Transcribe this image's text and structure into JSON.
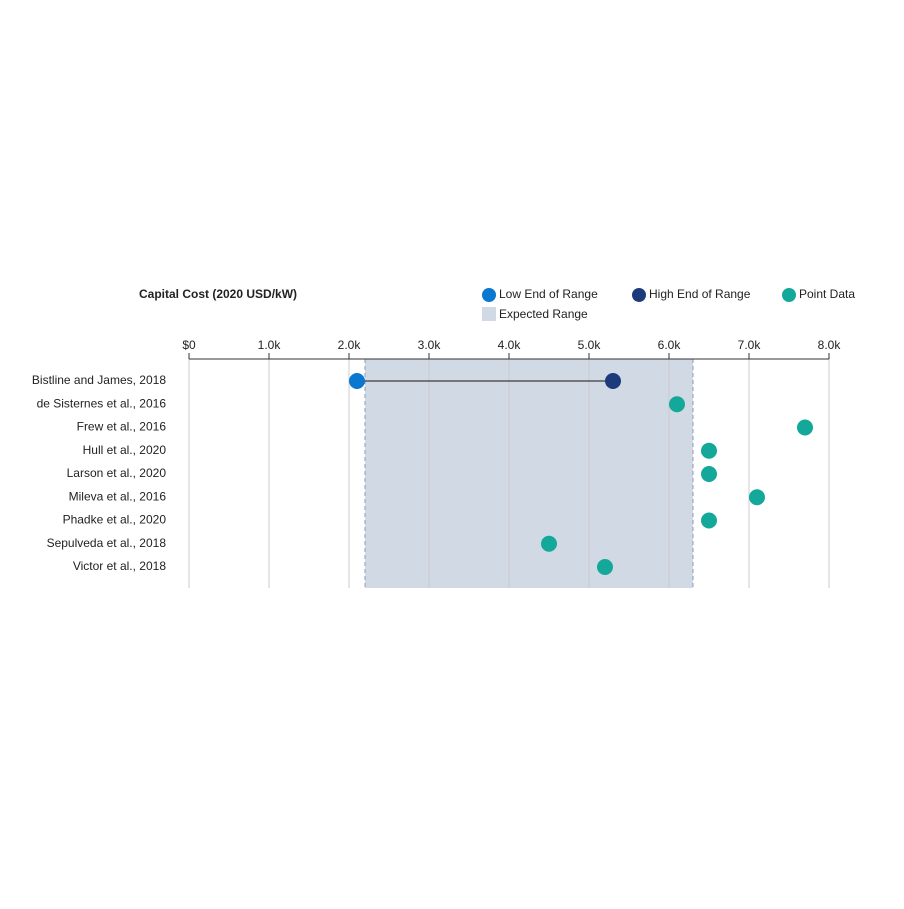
{
  "chart_data": {
    "type": "dot_range",
    "title": "Capital Cost (2020 USD/kW)",
    "categories": [
      "Bistline and James, 2018",
      "de Sisternes et al., 2016",
      "Frew et al., 2016",
      "Hull et al., 2020",
      "Larson et al., 2020",
      "Mileva et al., 2016",
      "Phadke et al., 2020",
      "Sepulveda et al., 2018",
      "Victor et al., 2018"
    ],
    "series": [
      {
        "name": "Low End of Range",
        "color": "#0a77d0",
        "values": [
          2100,
          null,
          null,
          null,
          null,
          null,
          null,
          null,
          null
        ]
      },
      {
        "name": "High End of Range",
        "color": "#1d3b7c",
        "values": [
          5300,
          null,
          null,
          null,
          null,
          null,
          null,
          null,
          null
        ]
      },
      {
        "name": "Point Data",
        "color": "#13a89a",
        "values": [
          null,
          6100,
          7700,
          6500,
          6500,
          7100,
          6500,
          4500,
          5200
        ]
      }
    ],
    "expected_range": {
      "name": "Expected Range",
      "color": "#d1d9e5",
      "values": [
        2200,
        6300
      ]
    },
    "xlim": [
      0,
      8000
    ],
    "xticks": [
      {
        "value": 0,
        "label": "$0"
      },
      {
        "value": 1000,
        "label": "1.0k"
      },
      {
        "value": 2000,
        "label": "2.0k"
      },
      {
        "value": 3000,
        "label": "3.0k"
      },
      {
        "value": 4000,
        "label": "4.0k"
      },
      {
        "value": 5000,
        "label": "5.0k"
      },
      {
        "value": 6000,
        "label": "6.0k"
      },
      {
        "value": 7000,
        "label": "7.0k"
      },
      {
        "value": 8000,
        "label": "8.0k"
      }
    ],
    "grid": true
  }
}
